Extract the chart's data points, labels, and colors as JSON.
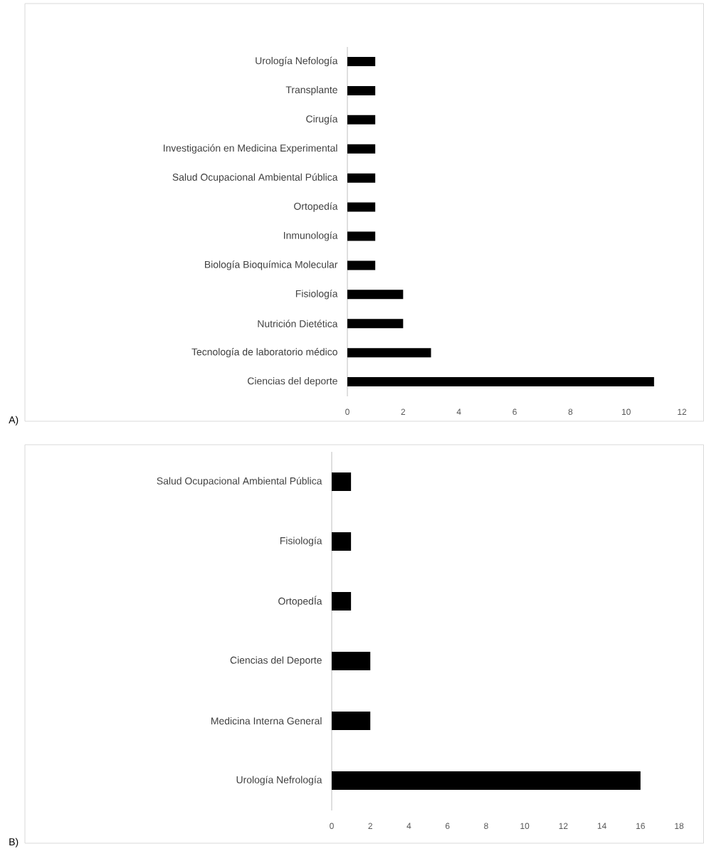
{
  "chart_data": [
    {
      "type": "bar",
      "orientation": "horizontal",
      "categories": [
        "Urología Nefología",
        "Transplante",
        "Cirugía",
        "Investigación en Medicina Experimental",
        "Salud Ocupacional Ambiental Pública",
        "Ortopedía",
        "Inmunología",
        "Biología Bioquímica Molecular",
        "Fisiología",
        "Nutrición Dietética",
        "Tecnología de laboratorio médico",
        "Ciencias del deporte"
      ],
      "values": [
        1,
        1,
        1,
        1,
        1,
        1,
        1,
        1,
        2,
        2,
        3,
        11
      ],
      "color": "#000000",
      "xlim": [
        0,
        12
      ],
      "xticks": [
        0,
        2,
        4,
        6,
        8,
        10,
        12
      ],
      "annotations": [
        "A)"
      ]
    },
    {
      "type": "bar",
      "orientation": "horizontal",
      "categories": [
        "Salud Ocupacional Ambiental Pública",
        "Fisiología",
        "OrtopedÍa",
        "Ciencias del Deporte",
        "Medicina Interna General",
        "Urología Nefrología"
      ],
      "values": [
        1,
        1,
        1,
        2,
        2,
        16
      ],
      "color": "#000000",
      "xlim": [
        0,
        18
      ],
      "xticks": [
        0,
        2,
        4,
        6,
        8,
        10,
        12,
        14,
        16,
        18
      ],
      "annotations": [
        "B)"
      ]
    }
  ]
}
